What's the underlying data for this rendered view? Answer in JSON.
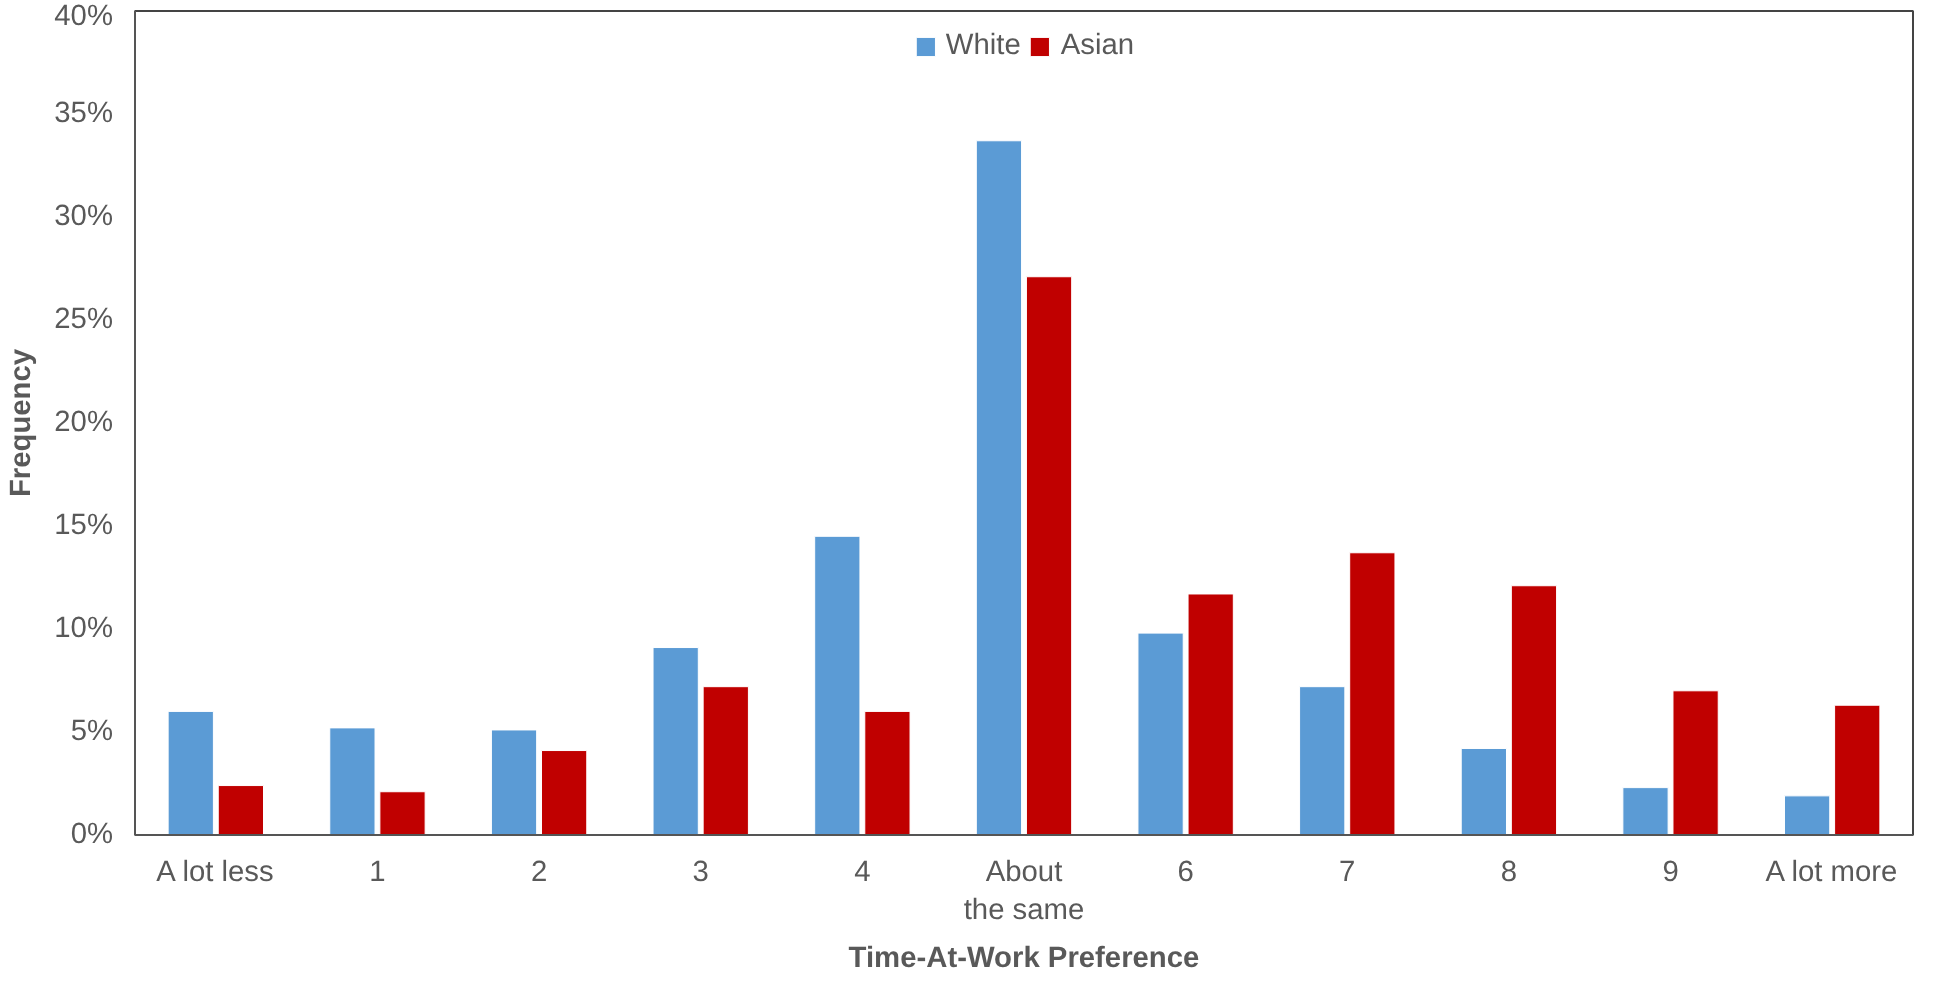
{
  "chart_data": {
    "type": "bar",
    "xlabel": "Time-At-Work Preference",
    "ylabel": "Frequency",
    "categories": [
      "A lot less",
      "1",
      "2",
      "3",
      "4",
      "About the same",
      "6",
      "7",
      "8",
      "9",
      "A lot more"
    ],
    "series": [
      {
        "name": "White",
        "color": "#5b9bd5",
        "values": [
          6.0,
          5.2,
          5.1,
          9.1,
          14.5,
          33.7,
          9.8,
          7.2,
          4.2,
          2.3,
          1.9
        ]
      },
      {
        "name": "Asian",
        "color": "#c00000",
        "values": [
          2.4,
          2.1,
          4.1,
          7.2,
          6.0,
          27.1,
          11.7,
          13.7,
          12.1,
          7.0,
          6.3
        ]
      }
    ],
    "ylim": [
      0,
      40
    ],
    "yticks": [
      {
        "value": 0,
        "label": "0%"
      },
      {
        "value": 5,
        "label": "5%"
      },
      {
        "value": 10,
        "label": "10%"
      },
      {
        "value": 15,
        "label": "15%"
      },
      {
        "value": 20,
        "label": "20%"
      },
      {
        "value": 25,
        "label": "25%"
      },
      {
        "value": 30,
        "label": "30%"
      },
      {
        "value": 35,
        "label": "35%"
      },
      {
        "value": 40,
        "label": "40%"
      }
    ],
    "grid": false,
    "legend": "top"
  }
}
